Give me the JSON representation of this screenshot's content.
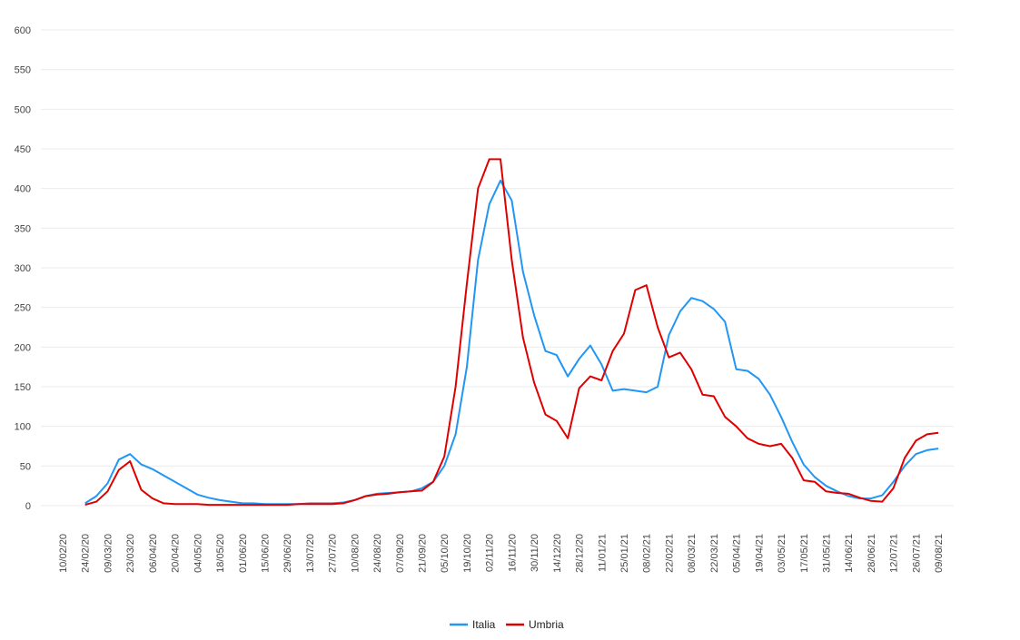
{
  "chart_data": {
    "type": "line",
    "title": "",
    "xlabel": "",
    "ylabel": "",
    "ylim": [
      0,
      600
    ],
    "yticks": [
      0,
      50,
      100,
      150,
      200,
      250,
      300,
      350,
      400,
      450,
      500,
      550,
      600
    ],
    "grid": "horizontal",
    "legend": "bottom-center",
    "x": [
      "10/02/20",
      "17/02/20",
      "24/02/20",
      "02/03/20",
      "09/03/20",
      "16/03/20",
      "23/03/20",
      "30/03/20",
      "06/04/20",
      "13/04/20",
      "20/04/20",
      "27/04/20",
      "04/05/20",
      "11/05/20",
      "18/05/20",
      "25/05/20",
      "01/06/20",
      "08/06/20",
      "15/06/20",
      "22/06/20",
      "29/06/20",
      "06/07/20",
      "13/07/20",
      "20/07/20",
      "27/07/20",
      "03/08/20",
      "10/08/20",
      "17/08/20",
      "24/08/20",
      "31/08/20",
      "07/09/20",
      "14/09/20",
      "21/09/20",
      "28/09/20",
      "05/10/20",
      "12/10/20",
      "19/10/20",
      "26/10/20",
      "02/11/20",
      "09/11/20",
      "16/11/20",
      "23/11/20",
      "30/11/20",
      "07/12/20",
      "14/12/20",
      "21/12/20",
      "28/12/20",
      "04/01/21",
      "11/01/21",
      "18/01/21",
      "25/01/21",
      "01/02/21",
      "08/02/21",
      "15/02/21",
      "22/02/21",
      "01/03/21",
      "08/03/21",
      "15/03/21",
      "22/03/21",
      "29/03/21",
      "05/04/21",
      "12/04/21",
      "19/04/21",
      "26/04/21",
      "03/05/21",
      "10/05/21",
      "17/05/21",
      "24/05/21",
      "31/05/21",
      "07/06/21",
      "14/06/21",
      "21/06/21",
      "28/06/21",
      "05/07/21",
      "12/07/21",
      "19/07/21",
      "26/07/21",
      "02/08/21",
      "09/08/21"
    ],
    "x_tick_labels": [
      "10/02/20",
      "24/02/20",
      "09/03/20",
      "23/03/20",
      "06/04/20",
      "20/04/20",
      "04/05/20",
      "18/05/20",
      "01/06/20",
      "15/06/20",
      "29/06/20",
      "13/07/20",
      "27/07/20",
      "10/08/20",
      "24/08/20",
      "07/09/20",
      "21/09/20",
      "05/10/20",
      "19/10/20",
      "02/11/20",
      "16/11/20",
      "30/11/20",
      "14/12/20",
      "28/12/20",
      "11/01/21",
      "25/01/21",
      "08/02/21",
      "22/02/21",
      "08/03/21",
      "22/03/21",
      "05/04/21",
      "19/04/21",
      "03/05/21",
      "17/05/21",
      "31/05/21",
      "14/06/21",
      "28/06/21",
      "12/07/21",
      "26/07/21",
      "09/08/21"
    ],
    "series": [
      {
        "name": "Italia",
        "color": "#2196f3",
        "values": [
          null,
          null,
          3,
          12,
          28,
          58,
          65,
          52,
          46,
          38,
          30,
          22,
          14,
          10,
          7,
          5,
          3,
          3,
          2,
          2,
          2,
          2,
          3,
          3,
          3,
          4,
          7,
          12,
          15,
          16,
          17,
          18,
          22,
          30,
          50,
          90,
          175,
          310,
          380,
          410,
          385,
          295,
          240,
          195,
          190,
          163,
          185,
          202,
          178,
          145,
          147,
          145,
          143,
          150,
          215,
          245,
          262,
          258,
          248,
          232,
          172,
          170,
          160,
          140,
          112,
          80,
          52,
          36,
          25,
          18,
          12,
          9,
          9,
          13,
          30,
          50,
          65,
          70,
          72
        ]
      },
      {
        "name": "Umbria",
        "color": "#e00000",
        "values": [
          null,
          null,
          1,
          5,
          18,
          45,
          56,
          20,
          9,
          3,
          2,
          2,
          2,
          1,
          1,
          1,
          1,
          1,
          1,
          1,
          1,
          2,
          2,
          2,
          2,
          3,
          7,
          12,
          14,
          15,
          17,
          18,
          19,
          30,
          62,
          150,
          280,
          400,
          437,
          437,
          310,
          212,
          155,
          115,
          107,
          85,
          148,
          163,
          158,
          195,
          217,
          272,
          278,
          225,
          187,
          193,
          172,
          140,
          138,
          112,
          100,
          85,
          78,
          75,
          78,
          60,
          32,
          30,
          18,
          16,
          15,
          10,
          6,
          5,
          22,
          60,
          82,
          90,
          92
        ]
      }
    ]
  }
}
